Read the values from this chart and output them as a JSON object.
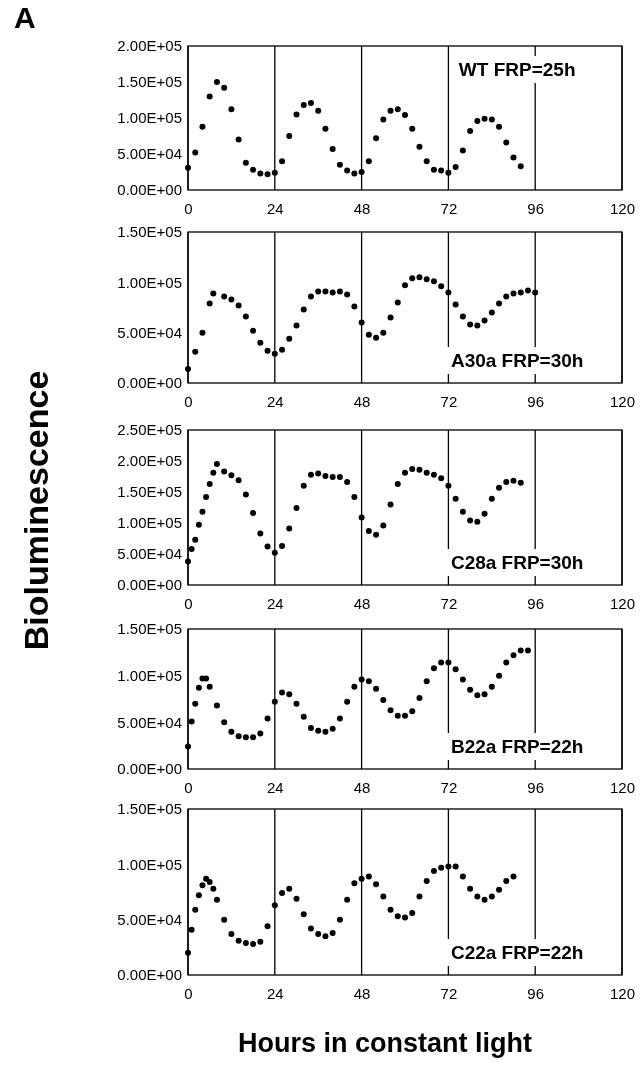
{
  "chart_data": [
    {
      "type": "scatter",
      "title": "A",
      "annotations": [
        "WT FRP=25h"
      ],
      "marker": "circle",
      "grid": "x",
      "xlim": [
        0,
        120
      ],
      "xticks": [
        0,
        24,
        48,
        72,
        96,
        120
      ],
      "ylim": [
        0,
        200000
      ],
      "yticks": [
        {
          "value": 0,
          "label": "0.00E+00"
        },
        {
          "value": 50000,
          "label": "5.00E+04"
        },
        {
          "value": 100000,
          "label": "1.00E+05"
        },
        {
          "value": 150000,
          "label": "1.50E+05"
        },
        {
          "value": 200000,
          "label": "2.00E+05"
        }
      ],
      "series": [
        {
          "color": "#000000",
          "x": [
            0,
            2,
            4,
            6,
            8,
            10,
            12,
            14,
            16,
            18,
            20,
            22,
            24,
            26,
            28,
            30,
            32,
            34,
            36,
            38,
            40,
            42,
            44,
            46,
            48,
            50,
            52,
            54,
            56,
            58,
            60,
            62,
            64,
            66,
            68,
            70,
            72,
            74,
            76,
            78,
            80,
            82,
            84,
            86,
            88,
            90,
            92
          ],
          "values": [
            31000,
            52000,
            88000,
            130000,
            150000,
            142000,
            112000,
            70000,
            38000,
            28000,
            23000,
            22000,
            24000,
            40000,
            75000,
            105000,
            118000,
            121000,
            110000,
            85000,
            57000,
            35000,
            27000,
            23000,
            25000,
            40000,
            72000,
            98000,
            110000,
            112000,
            104000,
            85000,
            60000,
            40000,
            28000,
            27000,
            24000,
            32000,
            55000,
            82000,
            96000,
            99000,
            98000,
            88000,
            66000,
            45000,
            33000
          ]
        }
      ]
    },
    {
      "type": "scatter",
      "annotations": [
        "A30a FRP=30h"
      ],
      "marker": "circle",
      "grid": "x",
      "xlim": [
        0,
        120
      ],
      "xticks": [
        0,
        24,
        48,
        72,
        96,
        120
      ],
      "ylim": [
        0,
        150000
      ],
      "yticks": [
        {
          "value": 0,
          "label": "0.00E+00"
        },
        {
          "value": 50000,
          "label": "5.00E+04"
        },
        {
          "value": 100000,
          "label": "1.00E+05"
        },
        {
          "value": 150000,
          "label": "1.50E+05"
        }
      ],
      "series": [
        {
          "color": "#000000",
          "x": [
            0,
            2,
            4,
            6,
            7,
            10,
            12,
            14,
            16,
            18,
            20,
            22,
            24,
            26,
            28,
            30,
            32,
            34,
            36,
            38,
            40,
            42,
            44,
            46,
            48,
            50,
            52,
            54,
            56,
            58,
            60,
            62,
            64,
            66,
            68,
            70,
            72,
            74,
            76,
            78,
            80,
            82,
            84,
            86,
            88,
            90,
            92,
            94,
            96
          ],
          "values": [
            14000,
            31000,
            50000,
            79000,
            89000,
            86000,
            83000,
            77000,
            66000,
            52000,
            40000,
            32000,
            29000,
            33000,
            44000,
            57000,
            73000,
            86000,
            91000,
            91000,
            90000,
            91000,
            88000,
            76000,
            60000,
            48000,
            45000,
            50000,
            65000,
            80000,
            97000,
            104000,
            105000,
            103000,
            101000,
            96000,
            90000,
            78000,
            66000,
            58000,
            57000,
            62000,
            70000,
            79000,
            86000,
            89000,
            90000,
            92000,
            90000
          ]
        }
      ]
    },
    {
      "type": "scatter",
      "annotations": [
        "C28a FRP=30h"
      ],
      "ylabel": "Bioluminescence",
      "marker": "circle",
      "grid": "x",
      "xlim": [
        0,
        120
      ],
      "xticks": [
        0,
        24,
        48,
        72,
        96,
        120
      ],
      "ylim": [
        0,
        250000
      ],
      "yticks": [
        {
          "value": 0,
          "label": "0.00E+00"
        },
        {
          "value": 50000,
          "label": "5.00E+04"
        },
        {
          "value": 100000,
          "label": "1.00E+05"
        },
        {
          "value": 150000,
          "label": "1.50E+05"
        },
        {
          "value": 200000,
          "label": "2.00E+05"
        },
        {
          "value": 250000,
          "label": "2.50E+05"
        }
      ],
      "series": [
        {
          "color": "#000000",
          "x": [
            0,
            1,
            2,
            3,
            4,
            5,
            6,
            7,
            8,
            10,
            12,
            14,
            16,
            18,
            20,
            22,
            24,
            26,
            28,
            30,
            32,
            34,
            36,
            38,
            40,
            42,
            44,
            46,
            48,
            50,
            52,
            54,
            56,
            58,
            60,
            62,
            64,
            66,
            68,
            70,
            72,
            74,
            76,
            78,
            80,
            82,
            84,
            86,
            88,
            90,
            92
          ],
          "values": [
            38000,
            58000,
            73000,
            97000,
            118000,
            142000,
            163000,
            181000,
            195000,
            183000,
            177000,
            169000,
            146000,
            116000,
            83000,
            62000,
            52000,
            63000,
            91000,
            124000,
            160000,
            178000,
            180000,
            176000,
            174000,
            174000,
            166000,
            142000,
            109000,
            87000,
            81000,
            96000,
            130000,
            163000,
            181000,
            187000,
            186000,
            181000,
            178000,
            172000,
            160000,
            139000,
            118000,
            104000,
            102000,
            115000,
            139000,
            157000,
            166000,
            168000,
            165000
          ]
        }
      ]
    },
    {
      "type": "scatter",
      "annotations": [
        "B22a FRP=22h"
      ],
      "marker": "circle",
      "grid": "x",
      "xlim": [
        0,
        120
      ],
      "xticks": [
        0,
        24,
        48,
        72,
        96,
        120
      ],
      "ylim": [
        0,
        150000
      ],
      "yticks": [
        {
          "value": 0,
          "label": "0.00E+00"
        },
        {
          "value": 50000,
          "label": "5.00E+04"
        },
        {
          "value": 100000,
          "label": "1.00E+05"
        },
        {
          "value": 150000,
          "label": "1.50E+05"
        }
      ],
      "series": [
        {
          "color": "#000000",
          "x": [
            0,
            1,
            2,
            3,
            4,
            5,
            6,
            8,
            10,
            12,
            14,
            16,
            18,
            20,
            22,
            24,
            26,
            28,
            30,
            32,
            34,
            36,
            38,
            40,
            42,
            44,
            46,
            48,
            50,
            52,
            54,
            56,
            58,
            60,
            62,
            64,
            66,
            68,
            70,
            72,
            74,
            76,
            78,
            80,
            82,
            84,
            86,
            88,
            90,
            92,
            94
          ],
          "values": [
            24000,
            51000,
            70000,
            87000,
            97000,
            97000,
            88000,
            68000,
            50000,
            40000,
            35000,
            34000,
            34000,
            38000,
            54000,
            72000,
            82000,
            80000,
            70000,
            56000,
            44000,
            41000,
            40000,
            43000,
            54000,
            72000,
            88000,
            96000,
            94000,
            86000,
            74000,
            63000,
            57000,
            57000,
            62000,
            76000,
            94000,
            108000,
            114000,
            114000,
            107000,
            96000,
            85000,
            79000,
            80000,
            88000,
            100000,
            114000,
            122000,
            127000,
            127000
          ]
        }
      ]
    },
    {
      "type": "scatter",
      "annotations": [
        "C22a FRP=22h"
      ],
      "xlabel": "Hours in constant light",
      "marker": "circle",
      "grid": "x",
      "xlim": [
        0,
        120
      ],
      "xticks": [
        0,
        24,
        48,
        72,
        96,
        120
      ],
      "ylim": [
        0,
        150000
      ],
      "yticks": [
        {
          "value": 0,
          "label": "0.00E+00"
        },
        {
          "value": 50000,
          "label": "5.00E+04"
        },
        {
          "value": 100000,
          "label": "1.00E+05"
        },
        {
          "value": 150000,
          "label": "1.50E+05"
        }
      ],
      "series": [
        {
          "color": "#000000",
          "x": [
            0,
            1,
            2,
            3,
            4,
            5,
            6,
            7,
            8,
            10,
            12,
            14,
            16,
            18,
            20,
            22,
            24,
            26,
            28,
            30,
            32,
            34,
            36,
            38,
            40,
            42,
            44,
            46,
            48,
            50,
            52,
            54,
            56,
            58,
            60,
            62,
            64,
            66,
            68,
            70,
            72,
            74,
            76,
            78,
            80,
            82,
            84,
            86,
            88,
            90
          ],
          "values": [
            20000,
            41000,
            59000,
            72000,
            81000,
            87000,
            84000,
            78000,
            68000,
            50000,
            37000,
            31000,
            29000,
            28000,
            30000,
            44000,
            63000,
            74000,
            78000,
            69000,
            55000,
            42000,
            37000,
            35000,
            38000,
            50000,
            68000,
            83000,
            87000,
            89000,
            82000,
            71000,
            59000,
            53000,
            52000,
            56000,
            71000,
            85000,
            94000,
            97000,
            98000,
            98000,
            89000,
            78000,
            71000,
            68000,
            71000,
            77000,
            85000,
            89000
          ]
        }
      ]
    }
  ]
}
